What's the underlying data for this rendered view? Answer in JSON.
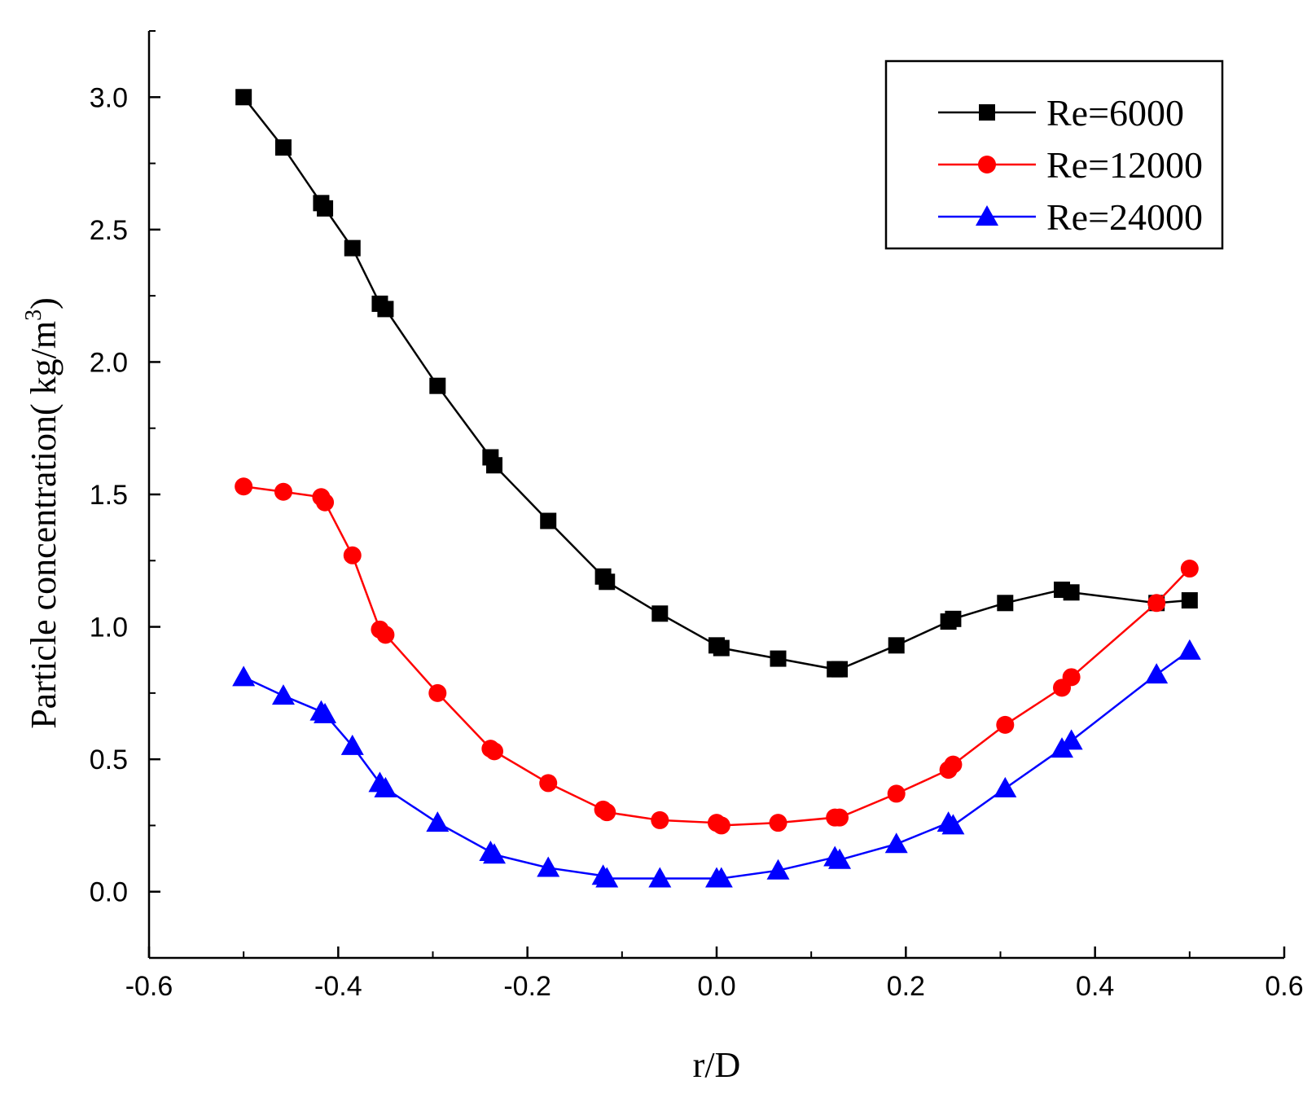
{
  "chart_data": {
    "type": "line",
    "title": "",
    "xlabel": "r/D",
    "ylabel": "Particle concentration( kg/m",
    "ylabel_superscript": "3",
    "ylabel_close": ")",
    "xlim": [
      -0.6,
      0.6
    ],
    "ylim": [
      -0.25,
      3.25
    ],
    "xticks": [
      -0.6,
      -0.4,
      -0.2,
      0.0,
      0.2,
      0.4,
      0.6
    ],
    "xtick_labels": [
      "-0.6",
      "-0.4",
      "-0.2",
      "0.0",
      "0.2",
      "0.4",
      "0.6"
    ],
    "yticks": [
      0.0,
      0.5,
      1.0,
      1.5,
      2.0,
      2.5,
      3.0
    ],
    "ytick_labels": [
      "0.0",
      "0.5",
      "1.0",
      "1.5",
      "2.0",
      "2.5",
      "3.0"
    ],
    "grid": false,
    "legend_position": "top-right",
    "series": [
      {
        "name": "Re=6000",
        "color": "#000000",
        "marker": "square",
        "x": [
          -0.5,
          -0.458,
          -0.418,
          -0.414,
          -0.385,
          -0.356,
          -0.35,
          -0.295,
          -0.239,
          -0.235,
          -0.178,
          -0.12,
          -0.116,
          -0.06,
          0.0,
          0.005,
          0.065,
          0.125,
          0.13,
          0.19,
          0.245,
          0.25,
          0.305,
          0.365,
          0.375,
          0.465,
          0.5
        ],
        "y": [
          3.0,
          2.81,
          2.6,
          2.58,
          2.43,
          2.22,
          2.2,
          1.91,
          1.64,
          1.61,
          1.4,
          1.19,
          1.17,
          1.05,
          0.93,
          0.92,
          0.88,
          0.84,
          0.84,
          0.93,
          1.02,
          1.03,
          1.09,
          1.14,
          1.13,
          1.09,
          1.1
        ]
      },
      {
        "name": "Re=12000",
        "color": "#ff0000",
        "marker": "circle",
        "x": [
          -0.5,
          -0.458,
          -0.418,
          -0.414,
          -0.385,
          -0.356,
          -0.35,
          -0.295,
          -0.239,
          -0.235,
          -0.178,
          -0.12,
          -0.116,
          -0.06,
          0.0,
          0.005,
          0.065,
          0.125,
          0.13,
          0.19,
          0.245,
          0.25,
          0.305,
          0.365,
          0.375,
          0.465,
          0.5
        ],
        "y": [
          1.53,
          1.51,
          1.49,
          1.47,
          1.27,
          0.99,
          0.97,
          0.75,
          0.54,
          0.53,
          0.41,
          0.31,
          0.3,
          0.27,
          0.26,
          0.25,
          0.26,
          0.28,
          0.28,
          0.37,
          0.46,
          0.48,
          0.63,
          0.77,
          0.81,
          1.09,
          1.22
        ]
      },
      {
        "name": "Re=24000",
        "color": "#0000ff",
        "marker": "triangle",
        "x": [
          -0.5,
          -0.458,
          -0.418,
          -0.414,
          -0.385,
          -0.356,
          -0.35,
          -0.295,
          -0.239,
          -0.235,
          -0.178,
          -0.12,
          -0.116,
          -0.06,
          0.0,
          0.005,
          0.065,
          0.125,
          0.13,
          0.19,
          0.245,
          0.25,
          0.305,
          0.365,
          0.375,
          0.465,
          0.5
        ],
        "y": [
          0.81,
          0.74,
          0.68,
          0.67,
          0.55,
          0.41,
          0.39,
          0.26,
          0.15,
          0.14,
          0.09,
          0.06,
          0.05,
          0.05,
          0.05,
          0.05,
          0.08,
          0.13,
          0.12,
          0.18,
          0.26,
          0.25,
          0.39,
          0.54,
          0.57,
          0.82,
          0.91
        ]
      }
    ]
  }
}
